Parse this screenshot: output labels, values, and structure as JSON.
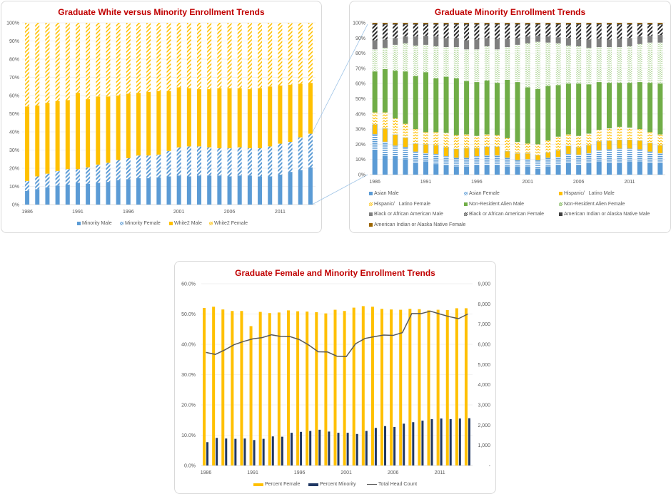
{
  "chart_data": [
    {
      "type": "bar",
      "stacked": "percent",
      "title": "Graduate White versus Minority Enrollment Trends",
      "x": [
        1986,
        1987,
        1988,
        1989,
        1990,
        1991,
        1992,
        1993,
        1994,
        1995,
        1996,
        1997,
        1998,
        1999,
        2000,
        2001,
        2002,
        2003,
        2004,
        2005,
        2006,
        2007,
        2008,
        2009,
        2010,
        2011,
        2012,
        2013,
        2014
      ],
      "x_tick_labels": [
        "1986",
        "1991",
        "1996",
        "2001",
        "2006",
        "2011"
      ],
      "y_tick_labels": [
        "0%",
        "10%",
        "20%",
        "30%",
        "40%",
        "50%",
        "60%",
        "70%",
        "80%",
        "90%",
        "100%"
      ],
      "ylim": [
        0,
        100
      ],
      "legend": "bottom",
      "series": [
        {
          "name": "Minority Male",
          "color": "#5b9bd5",
          "pattern": "solid",
          "values": [
            7.5,
            8.5,
            9.5,
            10.5,
            11,
            12,
            11.5,
            12,
            12.5,
            13.5,
            14,
            14.5,
            14.5,
            15,
            15.5,
            16,
            15.5,
            16,
            16,
            16,
            15.5,
            16,
            16,
            15.5,
            15.5,
            16.5,
            18,
            19,
            20.5
          ]
        },
        {
          "name": "Minority Female",
          "color": "#5b9bd5",
          "pattern": "diagonal",
          "values": [
            5.5,
            7,
            7.5,
            8,
            8.5,
            7.5,
            9,
            10,
            10.5,
            11,
            11.5,
            12.5,
            12.5,
            12.5,
            14,
            15.5,
            16.5,
            16,
            15.5,
            15,
            15.5,
            15.5,
            15,
            15.5,
            16.5,
            17,
            16.5,
            18,
            18.5
          ]
        },
        {
          "name": "White2 Male",
          "color": "#ffc000",
          "pattern": "solid",
          "values": [
            41,
            39,
            39,
            38.5,
            38,
            42,
            37.5,
            37.5,
            36.5,
            35.5,
            35.5,
            34.5,
            35,
            35,
            33,
            33,
            32,
            31.5,
            32,
            33,
            33,
            32.5,
            32.5,
            33,
            33,
            32,
            31.5,
            29.5,
            28
          ]
        },
        {
          "name": "White2 Female",
          "color": "#ffc000",
          "pattern": "diagonal",
          "values": [
            46,
            45.5,
            44,
            43,
            42.5,
            38.5,
            42,
            40.5,
            40.5,
            40,
            39,
            38.5,
            38,
            37.5,
            37.5,
            35.5,
            36,
            36.5,
            36.5,
            36,
            36,
            36,
            36.5,
            36,
            35,
            34.5,
            34,
            33.5,
            33
          ]
        }
      ]
    },
    {
      "type": "bar",
      "stacked": "percent",
      "title": "Graduate Minority Enrollment Trends",
      "values_are_cumulative": true,
      "x": [
        1986,
        1987,
        1988,
        1989,
        1990,
        1991,
        1992,
        1993,
        1994,
        1995,
        1996,
        1997,
        1998,
        1999,
        2000,
        2001,
        2002,
        2003,
        2004,
        2005,
        2006,
        2007,
        2008,
        2009,
        2010,
        2011,
        2012,
        2013,
        2014
      ],
      "x_tick_labels": [
        "1986",
        "1991",
        "1996",
        "2001",
        "2006",
        "2011"
      ],
      "y_tick_labels": [
        "0%",
        "10%",
        "20%",
        "30%",
        "40%",
        "50%",
        "60%",
        "70%",
        "80%",
        "90%",
        "100%"
      ],
      "ylim": [
        0,
        100
      ],
      "legend": "bottom",
      "series": [
        {
          "name": "Asian Male",
          "color": "#5b9bd5",
          "pattern": "solid",
          "cumulative": [
            16.5,
            12.5,
            11.5,
            10,
            8,
            8.5,
            7,
            6,
            5.5,
            5.5,
            6.5,
            6.5,
            6.5,
            5.5,
            5.5,
            5.5,
            4,
            5.5,
            6.5,
            7.5,
            6.5,
            7.5,
            8.5,
            8,
            8,
            8.5,
            8.5,
            8,
            8
          ]
        },
        {
          "name": "Asian Female",
          "color": "#5b9bd5",
          "pattern": "horizontal",
          "cumulative": [
            26.5,
            21.5,
            19,
            18,
            15,
            14,
            13.5,
            12,
            11,
            11,
            12,
            12.5,
            12.5,
            11,
            9.5,
            10,
            9.5,
            11,
            11.5,
            13.5,
            13,
            14,
            16,
            16.5,
            17,
            17,
            16.5,
            15,
            14
          ]
        },
        {
          "name": "Hispanic/   Latino Male",
          "color": "#ffc000",
          "pattern": "outlined",
          "cumulative": [
            33,
            30.5,
            26.5,
            24.5,
            20.5,
            20,
            19.5,
            18,
            17,
            17.5,
            17.5,
            18.5,
            18.5,
            15.5,
            14,
            14,
            13,
            14.5,
            16,
            19,
            18,
            19.5,
            22,
            22.5,
            23,
            23,
            22.5,
            21,
            19.5
          ]
        },
        {
          "name": "Hispanic/   Latino Female",
          "color": "#ffc000",
          "pattern": "zigzag",
          "cumulative": [
            41,
            41,
            37,
            33.5,
            30,
            28,
            28,
            27.5,
            26,
            26.5,
            25.5,
            26.5,
            26,
            24,
            21.5,
            20.5,
            20,
            22.5,
            25,
            26.5,
            25.5,
            27,
            29.5,
            30.5,
            31.5,
            31,
            30,
            28,
            26.5
          ]
        },
        {
          "name": "Non-Resident Alien Male",
          "color": "#70ad47",
          "pattern": "solid",
          "cumulative": [
            68,
            69.5,
            68.5,
            68,
            65,
            67.5,
            63.5,
            64.5,
            63.5,
            61.5,
            61,
            62,
            60.5,
            62.5,
            61,
            57.5,
            56.5,
            58.5,
            59,
            60,
            60,
            59.5,
            61,
            60.5,
            60.5,
            60.5,
            61,
            60.5,
            60
          ]
        },
        {
          "name": "Non-Resident Alien Female",
          "color": "#70ad47",
          "pattern": "wave",
          "cumulative": [
            82.5,
            83.5,
            85.5,
            86.5,
            85,
            85.5,
            84.5,
            84,
            84,
            82.5,
            82.5,
            84.5,
            82.5,
            84,
            85.5,
            86.5,
            87.5,
            87,
            86.5,
            85,
            84.5,
            83.5,
            84,
            84,
            84,
            84.5,
            86,
            87,
            87
          ]
        },
        {
          "name": "Black or African American Male",
          "color": "#7f7f7f",
          "pattern": "solid",
          "cumulative": [
            88.5,
            89,
            90,
            91,
            91,
            91.5,
            91,
            90,
            90,
            88.5,
            89,
            90,
            89.5,
            89.5,
            90,
            91,
            91.5,
            91,
            90.5,
            90,
            89,
            89,
            89.5,
            89,
            89.5,
            90,
            91,
            91.5,
            92
          ]
        },
        {
          "name": "Black or African American Female",
          "color": "#262626",
          "pattern": "diagonal",
          "cumulative": [
            98.8,
            98.8,
            98.8,
            98.8,
            98.8,
            98.8,
            98.8,
            98.8,
            98.8,
            98.8,
            98.8,
            98.8,
            98.8,
            98.8,
            98.8,
            98.8,
            98.8,
            98.8,
            98.8,
            98.8,
            98.8,
            98.8,
            98.8,
            98.8,
            98.8,
            98.8,
            98.8,
            98.8,
            98.8
          ]
        },
        {
          "name": "American Indian or Alaska Native Male",
          "color": "#404040",
          "pattern": "solid",
          "cumulative": [
            99.3,
            99.3,
            99.3,
            99.3,
            99.3,
            99.3,
            99.3,
            99.3,
            99.3,
            99.3,
            99.3,
            99.3,
            99.3,
            99.3,
            99.3,
            99.3,
            99.3,
            99.3,
            99.3,
            99.3,
            99.3,
            99.3,
            99.3,
            99.3,
            99.3,
            99.3,
            99.3,
            99.3,
            99.3
          ]
        },
        {
          "name": "American Indian or Alaska Native Female",
          "color": "#9c6500",
          "pattern": "solid",
          "cumulative": [
            100,
            100,
            100,
            100,
            100,
            100,
            100,
            100,
            100,
            100,
            100,
            100,
            100,
            100,
            100,
            100,
            100,
            100,
            100,
            100,
            100,
            100,
            100,
            100,
            100,
            100,
            100,
            100,
            100
          ]
        }
      ]
    },
    {
      "type": "bar+line",
      "title": "Graduate Female and Minority Enrollment Trends",
      "x": [
        1986,
        1987,
        1988,
        1989,
        1990,
        1991,
        1992,
        1993,
        1994,
        1995,
        1996,
        1997,
        1998,
        1999,
        2000,
        2001,
        2002,
        2003,
        2004,
        2005,
        2006,
        2007,
        2008,
        2009,
        2010,
        2011,
        2012,
        2013,
        2014
      ],
      "x_tick_labels": [
        "1986",
        "1991",
        "1996",
        "2001",
        "2006",
        "2011"
      ],
      "y_tick_labels": [
        "0.0%",
        "10.0%",
        "20.0%",
        "30.0%",
        "40.0%",
        "50.0%",
        "60.0%"
      ],
      "y2_tick_labels": [
        "-",
        "1,000",
        "2,000",
        "3,000",
        "4,000",
        "5,000",
        "6,000",
        "7,000",
        "8,000",
        "9,000"
      ],
      "ylim": [
        0,
        60
      ],
      "y2lim": [
        0,
        9000
      ],
      "legend": "bottom",
      "series": [
        {
          "name": "Percent Female",
          "type": "bar",
          "color": "#ffc000",
          "values": [
            52,
            52.4,
            51.5,
            51,
            51,
            46,
            50.7,
            50.3,
            50.5,
            51.2,
            50.9,
            50.8,
            50.6,
            50.2,
            51.4,
            51,
            52.1,
            52.6,
            52.4,
            51.7,
            51.5,
            51.4,
            51.7,
            51.6,
            51.2,
            51.4,
            51.3,
            51.9,
            51.9
          ]
        },
        {
          "name": "Percent Minority",
          "type": "bar",
          "color": "#203864",
          "values": [
            7.7,
            9.1,
            8.9,
            8.8,
            8.9,
            8.4,
            8.8,
            9.6,
            9.5,
            10.8,
            11.1,
            11.4,
            11.8,
            11.2,
            10.8,
            10.8,
            10.4,
            11.4,
            12.4,
            13,
            12.7,
            13.8,
            14.3,
            14.8,
            15.3,
            15.5,
            15.3,
            15.5,
            15.6
          ]
        },
        {
          "name": "Total Head Count",
          "type": "line",
          "axis": "right",
          "color": "#595959",
          "values": [
            5600,
            5500,
            5720,
            5980,
            6140,
            6270,
            6330,
            6470,
            6390,
            6380,
            6230,
            5960,
            5630,
            5620,
            5410,
            5390,
            6030,
            6290,
            6380,
            6460,
            6440,
            6580,
            7520,
            7520,
            7640,
            7500,
            7370,
            7270,
            7500
          ]
        }
      ]
    }
  ]
}
